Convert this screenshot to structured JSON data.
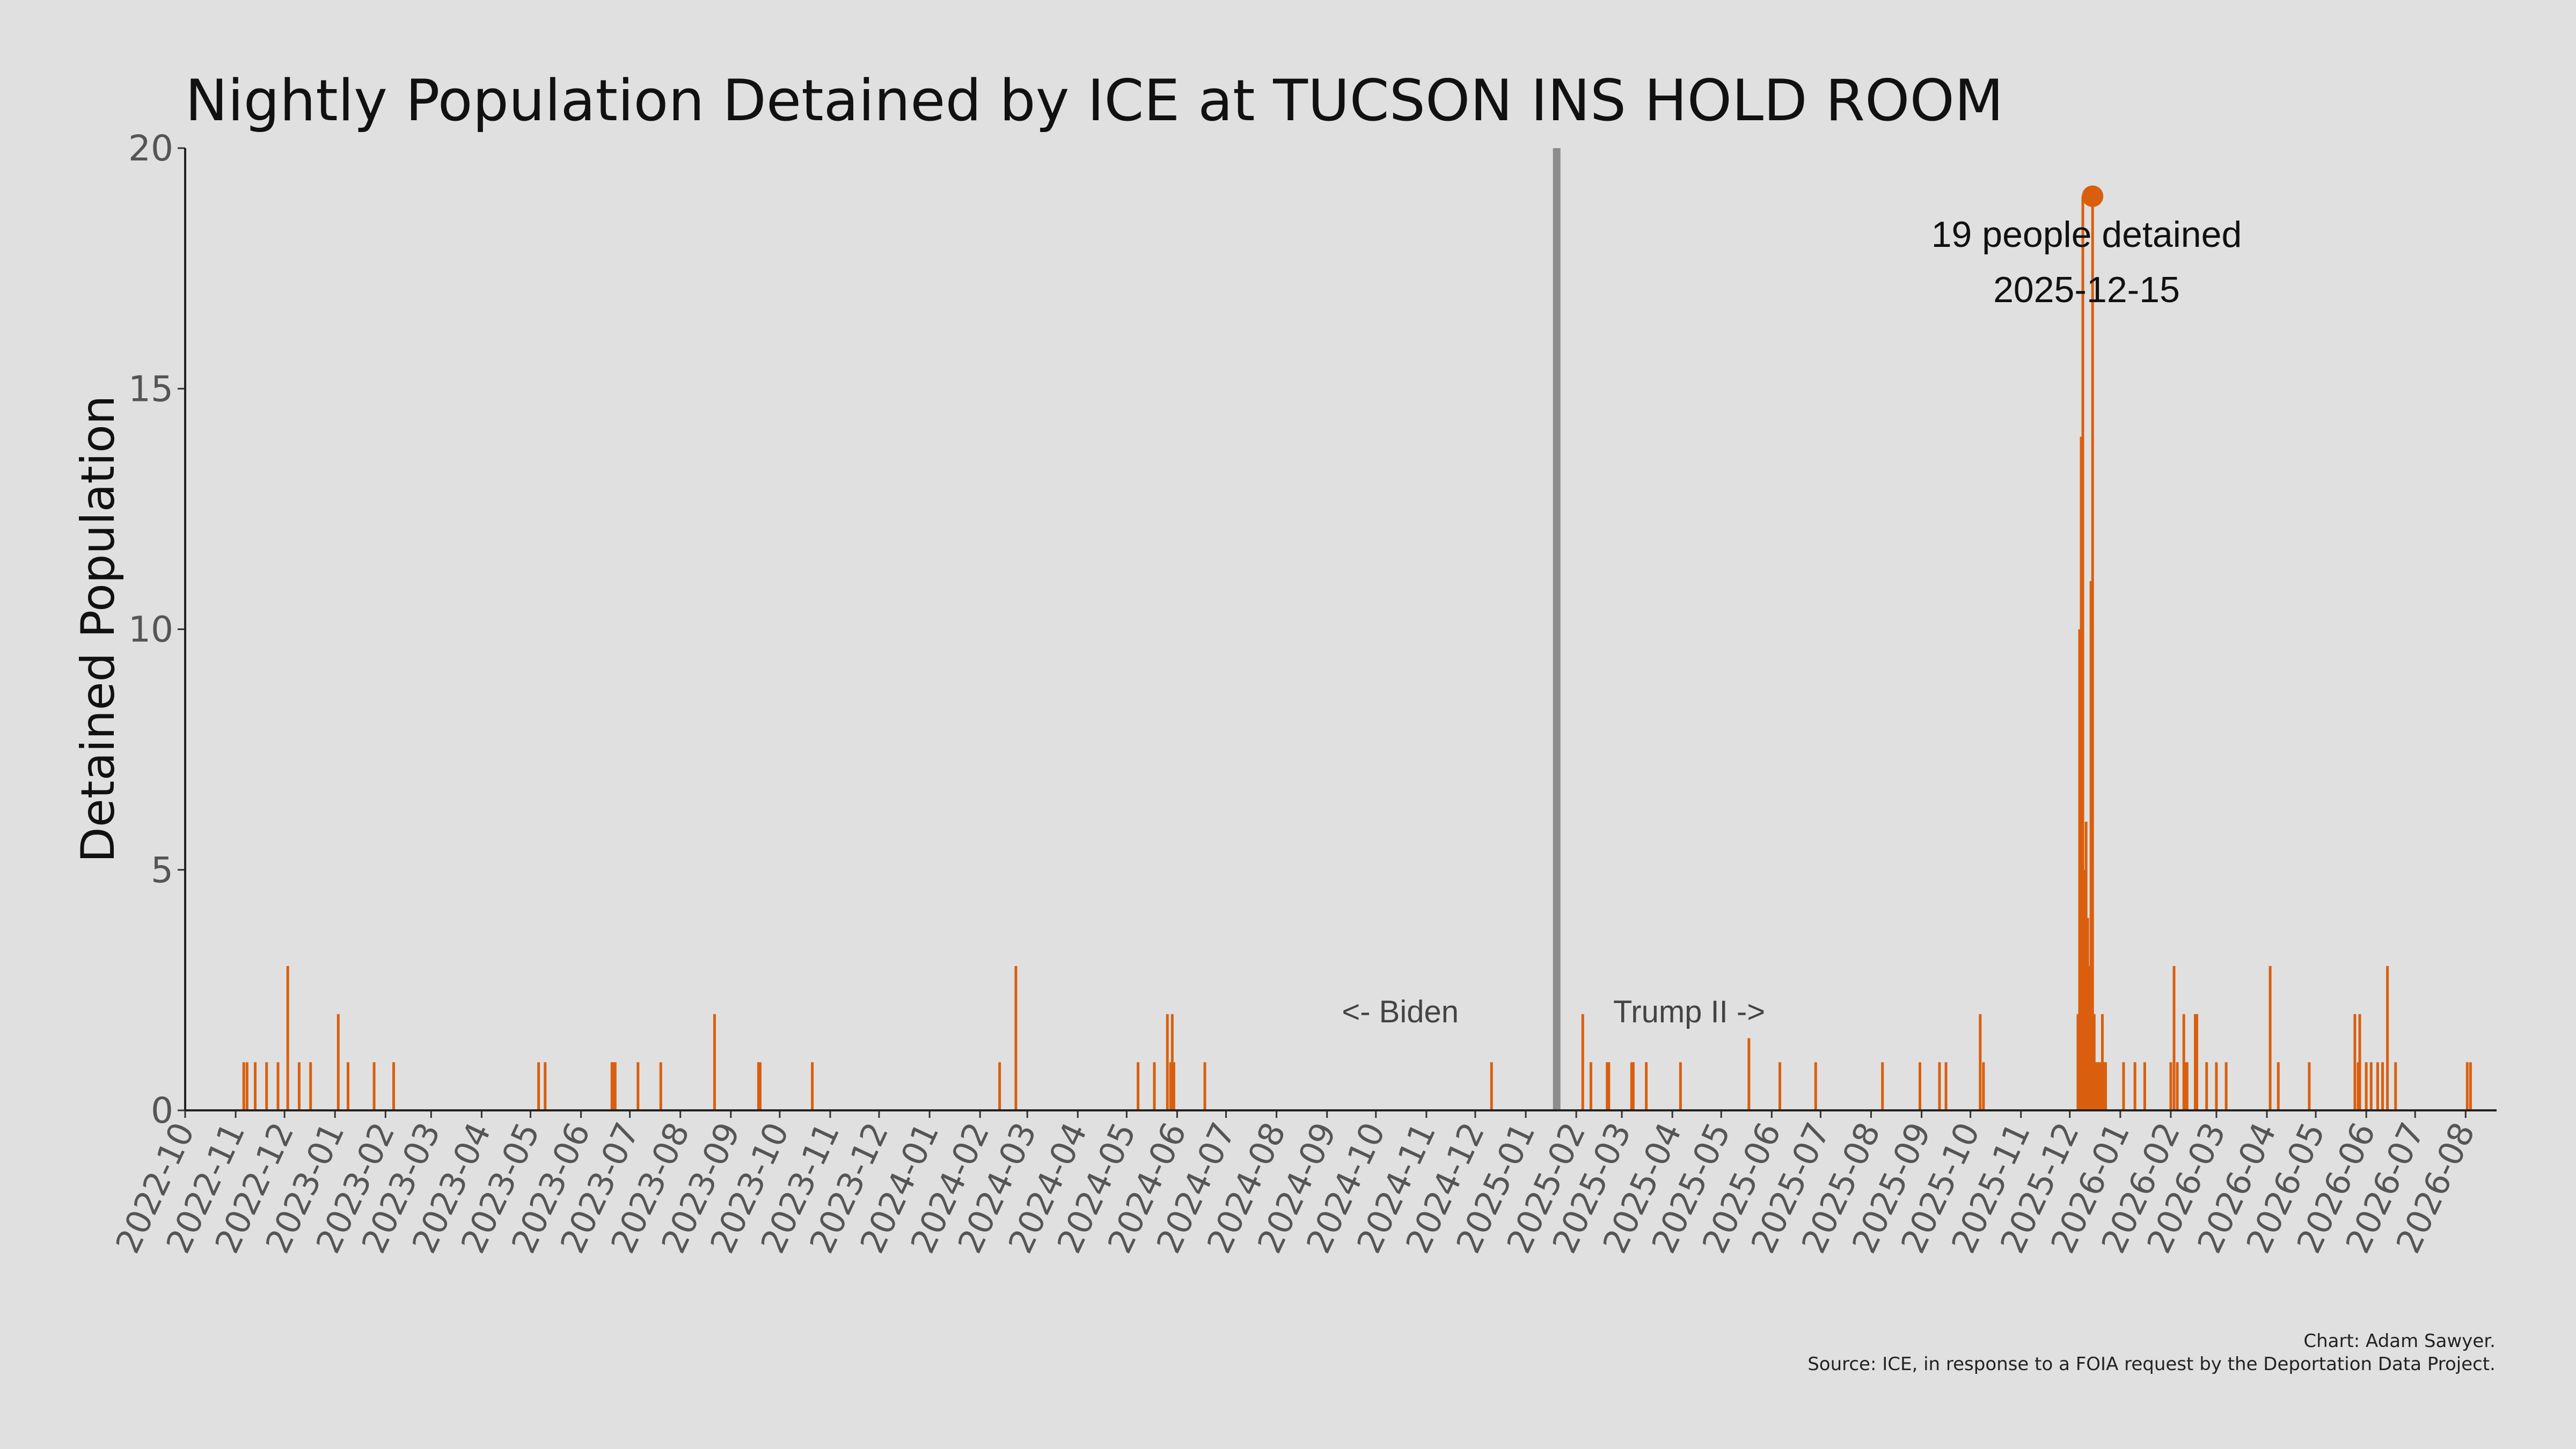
{
  "chart_data": {
    "type": "bar",
    "title": "Nightly Population Detained by ICE at TUCSON INS HOLD ROOM",
    "xlabel": "",
    "ylabel": "Detained Population",
    "xlim": [
      "2022-10-01",
      "2026-08-20"
    ],
    "ylim": [
      0,
      20
    ],
    "y_ticks": [
      0,
      5,
      10,
      15,
      20
    ],
    "x_ticks": [
      "2022-10",
      "2022-11",
      "2022-12",
      "2023-01",
      "2023-02",
      "2023-03",
      "2023-04",
      "2023-05",
      "2023-06",
      "2023-07",
      "2023-08",
      "2023-09",
      "2023-10",
      "2023-11",
      "2023-12",
      "2024-01",
      "2024-02",
      "2024-03",
      "2024-04",
      "2024-05",
      "2024-06",
      "2024-07",
      "2024-08",
      "2024-09",
      "2024-10",
      "2024-11",
      "2024-12",
      "2025-01",
      "2025-02",
      "2025-03",
      "2025-04",
      "2025-05",
      "2025-06",
      "2025-07",
      "2025-08",
      "2025-09",
      "2025-10",
      "2025-11",
      "2025-12",
      "2026-01",
      "2026-02",
      "2026-03",
      "2026-04",
      "2026-05",
      "2026-06",
      "2026-07",
      "2026-08"
    ],
    "grid": false,
    "bar_color": "#d95f0e",
    "divider_color": "#8c8c8c",
    "divider_date": "2025-01-20",
    "left_era_label": "<- Biden",
    "right_era_label": "Trump II ->",
    "peak": {
      "date": "2025-12-15",
      "value": 19,
      "label_count": "19 people detained",
      "label_date": "2025-12-15"
    },
    "x": [
      "2022-11-06",
      "2022-11-08",
      "2022-11-13",
      "2022-11-20",
      "2022-11-27",
      "2022-12-03",
      "2022-12-10",
      "2022-12-17",
      "2023-01-03",
      "2023-01-09",
      "2023-01-25",
      "2023-02-06",
      "2023-05-06",
      "2023-05-10",
      "2023-06-20",
      "2023-06-21",
      "2023-06-22",
      "2023-07-06",
      "2023-07-20",
      "2023-08-22",
      "2023-09-18",
      "2023-09-19",
      "2023-10-21",
      "2024-02-13",
      "2024-02-23",
      "2024-05-08",
      "2024-05-18",
      "2024-05-26",
      "2024-05-28",
      "2024-05-29",
      "2024-05-30",
      "2024-06-18",
      "2024-12-11",
      "2025-02-05",
      "2025-02-10",
      "2025-02-20",
      "2025-02-21",
      "2025-03-07",
      "2025-03-08",
      "2025-03-16",
      "2025-04-06",
      "2025-05-18",
      "2025-06-06",
      "2025-06-28",
      "2025-08-08",
      "2025-08-31",
      "2025-09-12",
      "2025-09-16",
      "2025-10-07",
      "2025-10-09",
      "2025-12-06",
      "2025-12-07",
      "2025-12-08",
      "2025-12-09",
      "2025-12-10",
      "2025-12-11",
      "2025-12-12",
      "2025-12-13",
      "2025-12-14",
      "2025-12-15",
      "2025-12-16",
      "2025-12-17",
      "2025-12-18",
      "2025-12-19",
      "2025-12-20",
      "2025-12-21",
      "2025-12-22",
      "2025-12-23",
      "2026-01-03",
      "2026-01-10",
      "2026-01-16",
      "2026-02-01",
      "2026-02-03",
      "2026-02-05",
      "2026-02-09",
      "2026-02-10",
      "2026-02-11",
      "2026-02-16",
      "2026-02-17",
      "2026-02-23",
      "2026-03-01",
      "2026-03-07",
      "2026-04-03",
      "2026-04-08",
      "2026-04-27",
      "2026-05-25",
      "2026-05-27",
      "2026-05-28",
      "2026-06-01",
      "2026-06-04",
      "2026-06-08",
      "2026-06-11",
      "2026-06-14",
      "2026-06-19",
      "2026-08-02",
      "2026-08-04"
    ],
    "values": [
      1,
      1,
      1,
      1,
      1,
      3,
      1,
      1,
      2,
      1,
      1,
      1,
      1,
      1,
      1,
      1,
      1,
      1,
      1,
      2,
      1,
      1,
      1,
      1,
      3,
      1,
      1,
      2,
      1,
      2,
      1,
      1,
      1,
      2,
      1,
      1,
      1,
      1,
      1,
      1,
      1,
      1.5,
      1,
      1,
      1,
      1,
      1,
      1,
      2,
      1,
      2,
      10,
      14,
      19,
      5,
      6,
      4,
      3,
      11,
      19,
      2,
      1,
      1,
      1,
      1,
      2,
      1,
      1,
      1,
      1,
      1,
      1,
      3,
      1,
      2,
      1,
      1,
      2,
      2,
      1,
      1,
      1,
      3,
      1,
      1,
      2,
      1,
      2,
      1,
      1,
      1,
      1,
      3,
      1,
      1,
      1
    ]
  },
  "credit": {
    "line1": "Chart: Adam Sawyer.",
    "line2": "Source: ICE, in response to a FOIA request by the Deportation Data Project."
  }
}
